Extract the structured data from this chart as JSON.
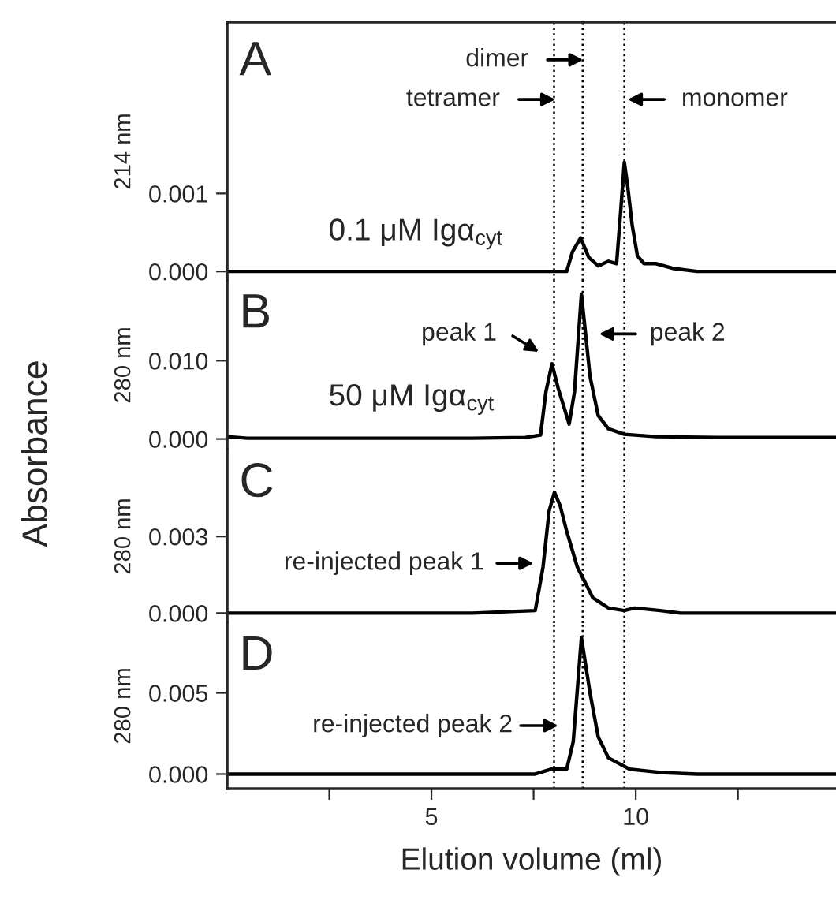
{
  "chart_data": [
    {
      "type": "line",
      "title": "A",
      "ylabel": "214 nm",
      "xlim": [
        0,
        14.9
      ],
      "ylim": [
        -0.00012,
        0.0032
      ],
      "yticks": [
        {
          "value": 0,
          "label": "0.000"
        },
        {
          "value": 0.001,
          "label": "0.001"
        }
      ],
      "tick_labels": "y",
      "line_style": "solid",
      "marker": "none",
      "grid": false,
      "legend": false,
      "series": [
        {
          "color": "#000000",
          "x": [
            0,
            2,
            4,
            6,
            8,
            8.31,
            8.45,
            8.65,
            8.85,
            9.08,
            9.33,
            9.53,
            9.62,
            9.72,
            9.8,
            9.91,
            10.04,
            10.2,
            10.49,
            10.9,
            11.5,
            12.5,
            14.9
          ],
          "values": [
            0,
            0,
            0,
            0,
            0,
            0,
            0.00025,
            0.00043,
            0.00018,
            7e-05,
            0.00013,
            0.0001,
            0.0007,
            0.0014,
            0.0011,
            0.0006,
            0.0002,
            0.0001,
            0.0001,
            4e-05,
            0,
            0,
            0
          ]
        }
      ],
      "ref_lines": [
        {
          "axis": "x",
          "value": 8.0,
          "color": "#000000",
          "line_style": "dotted"
        },
        {
          "axis": "x",
          "value": 8.7,
          "color": "#000000",
          "line_style": "dotted"
        },
        {
          "axis": "x",
          "value": 9.72,
          "color": "#000000",
          "line_style": "dotted"
        }
      ],
      "annotations": [
        "0.1 μM Igα$_{cyt}$",
        "dimer",
        "tetramer",
        "monomer"
      ]
    },
    {
      "type": "line",
      "title": "B",
      "ylabel": "280 nm",
      "xlim": [
        0,
        14.9
      ],
      "ylim": [
        -0.00135,
        0.0202
      ],
      "yticks": [
        {
          "value": 0,
          "label": "0.000"
        },
        {
          "value": 0.01,
          "label": "0.010"
        }
      ],
      "tick_labels": "y",
      "line_style": "solid",
      "marker": "none",
      "grid": false,
      "legend": false,
      "series": [
        {
          "color": "#000000",
          "x": [
            0,
            0.5,
            2,
            4,
            6,
            7.3,
            7.67,
            7.8,
            7.95,
            8.1,
            8.37,
            8.5,
            8.67,
            8.88,
            9.08,
            9.33,
            9.72,
            10.49,
            12,
            14.9
          ],
          "values": [
            0.0003,
            0.0001,
            0.0001,
            0.0001,
            0.0001,
            0.0002,
            0.0005,
            0.006,
            0.0096,
            0.0065,
            0.0019,
            0.006,
            0.0185,
            0.008,
            0.003,
            0.0013,
            0.0006,
            0.0003,
            0.0002,
            0.0002
          ]
        }
      ],
      "ref_lines": [
        {
          "axis": "x",
          "value": 8.0,
          "color": "#000000",
          "line_style": "dotted"
        },
        {
          "axis": "x",
          "value": 8.7,
          "color": "#000000",
          "line_style": "dotted"
        },
        {
          "axis": "x",
          "value": 9.72,
          "color": "#000000",
          "line_style": "dotted"
        }
      ],
      "annotations": [
        "50 μM Igα$_{cyt}$",
        "Absorbance",
        "peak 1",
        "peak 2"
      ]
    },
    {
      "type": "line",
      "title": "C",
      "ylabel": "280 nm",
      "xlim": [
        0,
        14.9
      ],
      "ylim": [
        -0.00039,
        0.0064
      ],
      "yticks": [
        {
          "value": 0,
          "label": "0.000"
        },
        {
          "value": 0.003,
          "label": "0.003"
        }
      ],
      "tick_labels": "y",
      "line_style": "solid",
      "marker": "none",
      "grid": false,
      "legend": false,
      "series": [
        {
          "color": "#000000",
          "x": [
            0,
            2,
            4,
            6,
            7.54,
            7.73,
            7.88,
            8.01,
            8.15,
            8.31,
            8.57,
            8.95,
            9.33,
            9.72,
            9.97,
            10.6,
            11.1,
            12,
            14.9
          ],
          "values": [
            0,
            0,
            0,
            0,
            0.0001,
            0.0018,
            0.004,
            0.00473,
            0.0042,
            0.0032,
            0.0018,
            0.0006,
            0.0002,
            0.0001,
            0.0002,
            0.0001,
            0,
            0,
            0
          ]
        }
      ],
      "ref_lines": [
        {
          "axis": "x",
          "value": 8.0,
          "color": "#000000",
          "line_style": "dotted"
        },
        {
          "axis": "x",
          "value": 8.7,
          "color": "#000000",
          "line_style": "dotted"
        },
        {
          "axis": "x",
          "value": 9.72,
          "color": "#000000",
          "line_style": "dotted"
        }
      ],
      "annotations": [
        "re-injected peak 1"
      ]
    },
    {
      "type": "line",
      "title": "D",
      "ylabel": "280 nm",
      "xlabel": "Elution volume (ml)",
      "xlim": [
        0,
        14.9
      ],
      "xticks": [
        {
          "value": 2.5,
          "label": null
        },
        5,
        {
          "value": 7.5,
          "label": null
        },
        10,
        {
          "value": 12.5,
          "label": null
        }
      ],
      "ylim": [
        -0.0009,
        0.0093
      ],
      "yticks": [
        {
          "value": 0,
          "label": "0.000"
        },
        {
          "value": 0.005,
          "label": "0.005"
        }
      ],
      "line_style": "solid",
      "marker": "none",
      "grid": false,
      "legend": false,
      "series": [
        {
          "color": "#000000",
          "x": [
            0,
            2,
            4,
            6,
            7.54,
            7.92,
            8.31,
            8.47,
            8.67,
            8.88,
            9.08,
            9.33,
            9.85,
            10.6,
            11.5,
            12.5,
            14.9
          ],
          "values": [
            0,
            0,
            0,
            0,
            0,
            0.0003,
            0.0003,
            0.002,
            0.0084,
            0.005,
            0.0023,
            0.001,
            0.0003,
            0.0001,
            0,
            0,
            0
          ]
        }
      ],
      "ref_lines": [
        {
          "axis": "x",
          "value": 8.0,
          "color": "#000000",
          "line_style": "dotted"
        },
        {
          "axis": "x",
          "value": 8.7,
          "color": "#000000",
          "line_style": "dotted"
        },
        {
          "axis": "x",
          "value": 9.72,
          "color": "#000000",
          "line_style": "dotted"
        }
      ],
      "annotations": [
        "re-injected peak 2"
      ]
    }
  ]
}
